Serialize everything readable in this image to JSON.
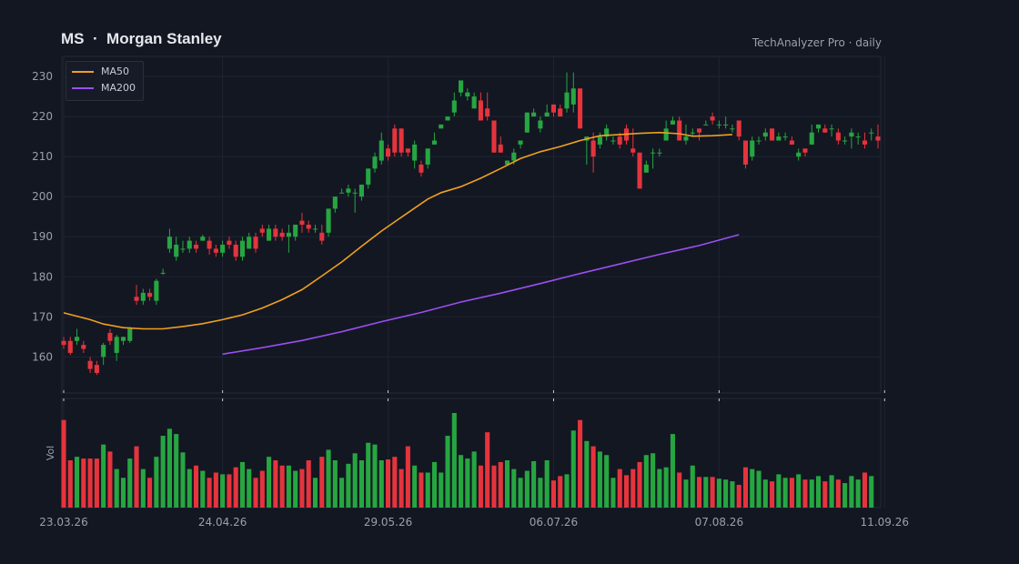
{
  "header": {
    "title": "MS  ·  Morgan Stanley",
    "source": "TechAnalyzer Pro · daily"
  },
  "colors": {
    "background": "#131722",
    "up": "#26a641",
    "down": "#e5343d",
    "ma50": "#f0a020",
    "ma200": "#9a4ff0",
    "grid": "#1e2432"
  },
  "chart_data": {
    "type": "candlestick",
    "price_axis": {
      "ylim": [
        151,
        235
      ],
      "ticks": [
        160,
        170,
        180,
        190,
        200,
        210,
        220,
        230
      ]
    },
    "volume_axis": {
      "label": "Vol"
    },
    "date_ticks": [
      {
        "i": 0,
        "label": "23.03.26"
      },
      {
        "i": 24,
        "label": "24.04.26"
      },
      {
        "i": 49,
        "label": "29.05.26"
      },
      {
        "i": 74,
        "label": "06.07.26"
      },
      {
        "i": 99,
        "label": "07.08.26"
      },
      {
        "i": 124,
        "label": "11.09.26"
      }
    ],
    "legend": [
      {
        "name": "MA50",
        "color": "#f0a020"
      },
      {
        "name": "MA200",
        "color": "#9a4ff0"
      }
    ],
    "candles": [
      [
        164,
        163,
        165,
        162
      ],
      [
        164,
        161,
        165,
        160.5
      ],
      [
        164,
        165,
        167,
        163
      ],
      [
        163,
        162,
        164,
        161
      ],
      [
        159,
        157,
        160,
        156
      ],
      [
        158,
        156,
        159,
        155.5
      ],
      [
        160,
        163,
        163.5,
        158
      ],
      [
        166,
        164,
        167,
        163
      ],
      [
        161,
        165,
        165.5,
        159
      ],
      [
        164,
        165,
        165,
        163
      ],
      [
        164,
        167,
        167.5,
        163.5
      ],
      [
        175,
        174,
        178,
        173
      ],
      [
        174,
        176,
        177,
        173
      ],
      [
        176,
        175,
        177,
        174
      ],
      [
        174,
        179,
        179.5,
        173
      ],
      [
        181,
        181,
        182,
        180.5
      ],
      [
        187,
        190,
        192,
        186
      ],
      [
        185,
        188,
        190,
        184
      ],
      [
        187,
        187,
        189,
        186
      ],
      [
        187,
        189,
        190,
        186
      ],
      [
        188,
        187,
        189,
        186
      ],
      [
        189,
        190,
        190.5,
        189
      ],
      [
        189,
        187,
        190,
        185.5
      ],
      [
        187,
        186,
        188,
        185
      ],
      [
        186,
        188,
        189,
        185
      ],
      [
        189,
        188,
        190,
        187
      ],
      [
        188,
        185,
        189,
        184
      ],
      [
        185,
        189,
        190,
        184
      ],
      [
        187,
        190,
        191,
        187
      ],
      [
        190,
        187,
        191,
        186
      ],
      [
        192,
        191,
        193,
        190
      ],
      [
        189,
        192,
        193,
        189
      ],
      [
        192,
        190,
        193,
        189
      ],
      [
        191,
        190,
        192,
        189
      ],
      [
        190,
        191,
        193,
        186
      ],
      [
        190,
        193,
        193,
        189
      ],
      [
        194,
        193,
        196,
        191
      ],
      [
        193,
        192,
        194,
        191
      ],
      [
        192,
        192,
        193,
        191
      ],
      [
        191,
        189,
        193,
        188
      ],
      [
        191,
        197,
        197,
        190
      ],
      [
        197,
        200,
        200,
        196
      ],
      [
        201,
        201,
        202,
        201
      ],
      [
        201,
        202,
        203,
        200
      ],
      [
        201,
        201,
        202,
        196
      ],
      [
        200,
        203,
        203,
        199
      ],
      [
        203,
        207,
        207,
        202
      ],
      [
        207,
        210,
        211,
        206
      ],
      [
        209,
        214,
        216,
        208
      ],
      [
        212,
        210,
        213,
        209
      ],
      [
        217,
        211,
        218,
        210
      ],
      [
        217,
        211,
        217,
        210
      ],
      [
        212,
        211,
        212,
        210
      ],
      [
        209,
        213,
        214,
        207
      ],
      [
        208,
        206,
        209,
        205
      ],
      [
        208,
        212,
        212,
        207
      ],
      [
        213,
        214,
        216,
        213
      ],
      [
        217,
        218,
        218,
        217
      ],
      [
        219,
        220,
        220,
        219
      ],
      [
        221,
        224,
        226,
        220
      ],
      [
        226,
        229,
        229,
        225
      ],
      [
        225,
        226,
        227,
        224
      ],
      [
        222,
        225,
        226,
        222
      ],
      [
        224,
        219,
        226,
        219
      ],
      [
        222,
        220,
        226,
        219
      ],
      [
        219,
        211,
        219,
        211
      ],
      [
        213,
        211,
        215,
        211
      ],
      [
        208,
        209,
        209,
        208
      ],
      [
        209,
        211,
        212,
        208
      ],
      [
        213,
        214,
        214,
        212
      ],
      [
        216,
        221,
        221,
        216
      ],
      [
        220,
        221,
        222,
        220
      ],
      [
        217,
        219,
        220,
        216
      ],
      [
        220,
        221,
        223,
        220
      ],
      [
        223,
        221,
        223,
        220
      ],
      [
        222,
        220,
        223,
        220
      ],
      [
        222,
        226,
        231,
        221
      ],
      [
        223,
        227,
        231,
        221
      ],
      [
        227,
        217,
        227,
        217
      ],
      [
        214,
        215,
        215,
        208
      ],
      [
        214,
        210,
        216,
        206
      ],
      [
        213,
        215,
        216,
        212
      ],
      [
        215,
        217,
        218,
        214
      ],
      [
        214,
        214,
        215,
        213
      ],
      [
        215,
        213,
        216,
        212
      ],
      [
        217,
        214,
        218,
        213
      ],
      [
        212,
        211,
        217,
        210
      ],
      [
        211,
        202,
        211,
        202
      ],
      [
        206,
        208,
        209,
        206
      ],
      [
        211,
        211,
        212,
        207
      ],
      [
        211,
        211,
        212,
        210
      ],
      [
        214,
        217,
        219,
        214
      ],
      [
        218,
        219,
        220,
        218
      ],
      [
        219,
        214,
        220,
        214
      ],
      [
        214,
        215,
        218,
        213
      ],
      [
        216,
        216,
        217,
        215
      ],
      [
        217,
        216,
        217,
        214
      ],
      [
        218,
        218,
        219,
        218
      ],
      [
        220,
        219,
        221,
        218
      ],
      [
        218,
        218,
        219,
        217
      ],
      [
        218,
        218,
        220,
        217
      ],
      [
        217,
        217,
        218,
        216
      ],
      [
        219,
        215,
        219,
        214
      ],
      [
        214,
        208,
        214,
        207
      ],
      [
        210,
        214,
        215,
        209
      ],
      [
        214,
        214,
        215,
        213
      ],
      [
        215,
        216,
        217,
        214
      ],
      [
        217,
        214,
        217,
        214
      ],
      [
        214,
        215,
        216,
        214
      ],
      [
        215,
        215,
        216,
        214
      ],
      [
        214,
        213,
        215,
        213
      ],
      [
        210,
        211,
        212,
        209
      ],
      [
        212,
        211,
        212,
        210
      ],
      [
        213,
        216,
        218,
        213
      ],
      [
        217,
        218,
        218,
        216
      ],
      [
        217,
        216,
        218,
        216
      ],
      [
        217,
        217,
        218,
        215
      ],
      [
        216,
        214,
        217,
        213
      ],
      [
        214,
        214,
        215,
        213
      ],
      [
        215,
        216,
        217,
        212
      ],
      [
        215,
        215,
        216,
        213
      ],
      [
        214,
        213,
        216,
        212
      ],
      [
        216,
        216,
        217,
        214
      ],
      [
        215,
        214,
        218,
        212
      ]
    ],
    "volume": [
      100,
      54,
      58,
      56,
      56,
      56,
      72,
      64,
      44,
      34,
      56,
      70,
      44,
      34,
      58,
      82,
      90,
      84,
      63,
      44,
      48,
      42,
      34,
      40,
      38,
      38,
      46,
      52,
      44,
      34,
      42,
      58,
      54,
      48,
      48,
      42,
      44,
      54,
      34,
      58,
      66,
      54,
      34,
      50,
      62,
      54,
      74,
      72,
      54,
      55,
      58,
      44,
      70,
      48,
      40,
      40,
      52,
      40,
      82,
      108,
      60,
      56,
      64,
      48,
      86,
      48,
      52,
      54,
      44,
      34,
      42,
      53,
      34,
      54,
      31,
      36,
      38,
      88,
      100,
      76,
      70,
      64,
      60,
      34,
      44,
      37,
      44,
      52,
      60,
      62,
      44,
      46,
      84,
      40,
      32,
      48,
      35,
      35,
      35,
      33,
      32,
      30,
      26,
      46,
      44,
      42,
      32,
      30,
      38,
      34,
      34,
      38,
      32,
      32,
      36,
      30,
      37,
      32,
      28,
      36,
      32,
      40,
      36
    ],
    "ma50": [
      [
        0,
        171
      ],
      [
        4,
        169.3
      ],
      [
        6,
        168.2
      ],
      [
        9,
        167.3
      ],
      [
        12,
        167
      ],
      [
        15,
        167
      ],
      [
        18,
        167.6
      ],
      [
        21,
        168.3
      ],
      [
        24,
        169.3
      ],
      [
        27,
        170.5
      ],
      [
        30,
        172.2
      ],
      [
        33,
        174.3
      ],
      [
        36,
        176.8
      ],
      [
        39,
        180.2
      ],
      [
        42,
        183.7
      ],
      [
        45,
        187.6
      ],
      [
        48,
        191.4
      ],
      [
        50,
        193.7
      ],
      [
        52,
        196
      ],
      [
        55,
        199.4
      ],
      [
        57,
        201
      ],
      [
        60,
        202.5
      ],
      [
        63,
        204.6
      ],
      [
        66,
        207
      ],
      [
        69,
        209.5
      ],
      [
        72,
        211.2
      ],
      [
        75,
        212.5
      ],
      [
        78,
        214
      ],
      [
        81,
        215.2
      ],
      [
        84,
        215.5
      ],
      [
        87,
        215.8
      ],
      [
        90,
        216
      ],
      [
        93,
        215.7
      ],
      [
        95,
        215.1
      ],
      [
        98,
        215.2
      ],
      [
        101,
        215.5
      ]
    ],
    "ma200": [
      [
        24,
        160.7
      ],
      [
        30,
        162.3
      ],
      [
        36,
        164.1
      ],
      [
        42,
        166.3
      ],
      [
        48,
        168.8
      ],
      [
        54,
        171.1
      ],
      [
        60,
        173.7
      ],
      [
        66,
        175.9
      ],
      [
        72,
        178.3
      ],
      [
        78,
        180.8
      ],
      [
        84,
        183.2
      ],
      [
        90,
        185.6
      ],
      [
        96,
        187.8
      ],
      [
        102,
        190.5
      ]
    ]
  }
}
